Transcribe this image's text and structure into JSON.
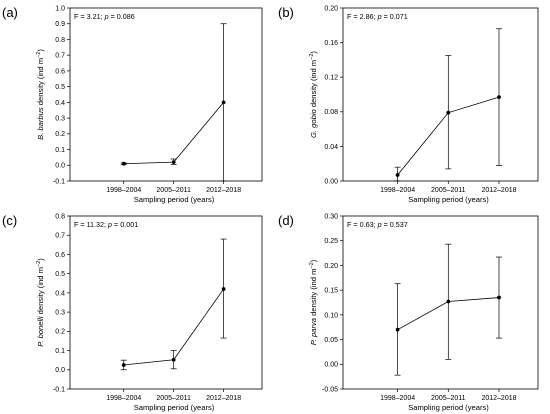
{
  "chart_data": [
    {
      "type": "line",
      "panel_label": "(a)",
      "stat_text": "F = 3.21; p = 0.086",
      "stat_parts": [
        {
          "text": "F = 3.21; ",
          "italic": false
        },
        {
          "text": "p",
          "italic": true
        },
        {
          "text": " = 0.086",
          "italic": false
        }
      ],
      "ylabel_parts": [
        {
          "text": "B. barbus",
          "italic": true
        },
        {
          "text": " density (ind m",
          "italic": false
        },
        {
          "text": "−2",
          "sup": true
        },
        {
          "text": ")",
          "italic": false
        }
      ],
      "xlabel": "Sampling period (years)",
      "categories": [
        "1998–2004",
        "2005–2011",
        "2012–2018"
      ],
      "series": [
        {
          "values": [
            0.01,
            0.02,
            0.4
          ],
          "err_low": [
            0.005,
            0.005,
            -0.1
          ],
          "err_high": [
            0.015,
            0.04,
            0.9
          ]
        }
      ],
      "ylim": [
        -0.1,
        1.0
      ],
      "yticks": [
        "-0.1",
        "0.0",
        "0.1",
        "0.2",
        "0.3",
        "0.4",
        "0.5",
        "0.6",
        "0.7",
        "0.8",
        "0.9",
        "1.0"
      ],
      "grid": false
    },
    {
      "type": "line",
      "panel_label": "(b)",
      "stat_text": "F = 2.86; p = 0.071",
      "stat_parts": [
        {
          "text": "F = 2.86; ",
          "italic": false
        },
        {
          "text": "p",
          "italic": true
        },
        {
          "text": " = 0.071",
          "italic": false
        }
      ],
      "ylabel_parts": [
        {
          "text": "G. gobio",
          "italic": true
        },
        {
          "text": " density (ind m",
          "italic": false
        },
        {
          "text": "−2",
          "sup": true
        },
        {
          "text": ")",
          "italic": false
        }
      ],
      "xlabel": "Sampling period (years)",
      "categories": [
        "1998–2004",
        "2005–2011",
        "2012–2018"
      ],
      "series": [
        {
          "values": [
            0.007,
            0.079,
            0.097
          ],
          "err_low": [
            0.0,
            0.014,
            0.018
          ],
          "err_high": [
            0.016,
            0.145,
            0.176
          ]
        }
      ],
      "ylim": [
        0.0,
        0.2
      ],
      "yticks": [
        "0.00",
        "0.04",
        "0.08",
        "0.12",
        "0.16",
        "0.20"
      ],
      "grid": false
    },
    {
      "type": "line",
      "panel_label": "(c)",
      "stat_text": "F = 11.32; p = 0.001",
      "stat_parts": [
        {
          "text": "F = 11.32; ",
          "italic": false
        },
        {
          "text": "p",
          "italic": true
        },
        {
          "text": " = 0.001",
          "italic": false
        }
      ],
      "ylabel_parts": [
        {
          "text": "P. bonelli",
          "italic": true
        },
        {
          "text": " density (ind m",
          "italic": false
        },
        {
          "text": "−2",
          "sup": true
        },
        {
          "text": ")",
          "italic": false
        }
      ],
      "xlabel": "Sampling period (years)",
      "categories": [
        "1998–2004",
        "2005–2011",
        "2012–2018"
      ],
      "series": [
        {
          "values": [
            0.025,
            0.052,
            0.42
          ],
          "err_low": [
            0.0,
            0.005,
            0.165
          ],
          "err_high": [
            0.05,
            0.1,
            0.68
          ]
        }
      ],
      "ylim": [
        -0.1,
        0.8
      ],
      "yticks": [
        "-0.1",
        "0.0",
        "0.1",
        "0.2",
        "0.3",
        "0.4",
        "0.5",
        "0.6",
        "0.7",
        "0.8"
      ],
      "grid": false
    },
    {
      "type": "line",
      "panel_label": "(d)",
      "stat_text": "F = 0.63; p = 0.537",
      "stat_parts": [
        {
          "text": "F = 0.63; ",
          "italic": false
        },
        {
          "text": "p",
          "italic": true
        },
        {
          "text": " = 0.537",
          "italic": false
        }
      ],
      "ylabel_parts": [
        {
          "text": "P. parva",
          "italic": true
        },
        {
          "text": " density (ind m",
          "italic": false
        },
        {
          "text": "−2",
          "sup": true
        },
        {
          "text": ")",
          "italic": false
        }
      ],
      "xlabel": "Sampling period (years)",
      "categories": [
        "1998–2004",
        "2005–2011",
        "2012–2018"
      ],
      "series": [
        {
          "values": [
            0.07,
            0.127,
            0.135
          ],
          "err_low": [
            -0.022,
            0.01,
            0.053
          ],
          "err_high": [
            0.163,
            0.243,
            0.217
          ]
        }
      ],
      "ylim": [
        -0.05,
        0.3
      ],
      "yticks": [
        "-0.05",
        "0.00",
        "0.05",
        "0.10",
        "0.15",
        "0.20",
        "0.25",
        "0.30"
      ],
      "grid": false
    }
  ]
}
